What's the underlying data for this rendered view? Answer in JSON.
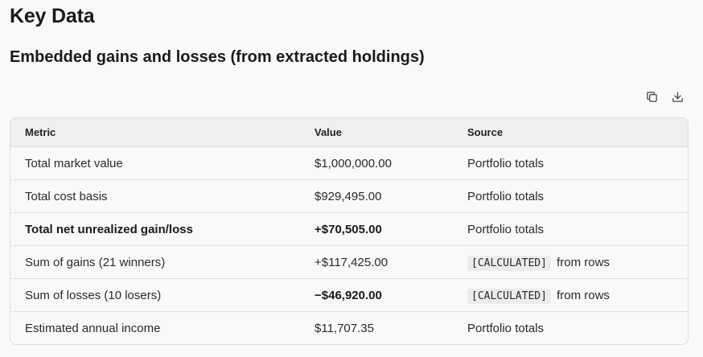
{
  "heading": "Key Data",
  "subheading": "Embedded gains and losses (from extracted holdings)",
  "toolbar": {
    "copy_icon": "copy-icon",
    "download_icon": "download-icon"
  },
  "table": {
    "headers": [
      "Metric",
      "Value",
      "Source"
    ],
    "rows": [
      {
        "metric": "Total market value",
        "value": "$1,000,000.00",
        "tag": "",
        "source": "Portfolio totals",
        "bold_metric": false,
        "bold_value": false
      },
      {
        "metric": "Total cost basis",
        "value": "$929,495.00",
        "tag": "",
        "source": "Portfolio totals",
        "bold_metric": false,
        "bold_value": false
      },
      {
        "metric": "Total net unrealized gain/loss",
        "value": "+$70,505.00",
        "tag": "",
        "source": "Portfolio totals",
        "bold_metric": true,
        "bold_value": true
      },
      {
        "metric": "Sum of gains (21 winners)",
        "value": "+$117,425.00",
        "tag": "[CALCULATED]",
        "source": "from rows",
        "bold_metric": false,
        "bold_value": false
      },
      {
        "metric": "Sum of losses (10 losers)",
        "value": "−$46,920.00",
        "tag": "[CALCULATED]",
        "source": "from rows",
        "bold_metric": false,
        "bold_value": true
      },
      {
        "metric": "Estimated annual income",
        "value": "$11,707.35",
        "tag": "",
        "source": "Portfolio totals",
        "bold_metric": false,
        "bold_value": false
      }
    ]
  }
}
